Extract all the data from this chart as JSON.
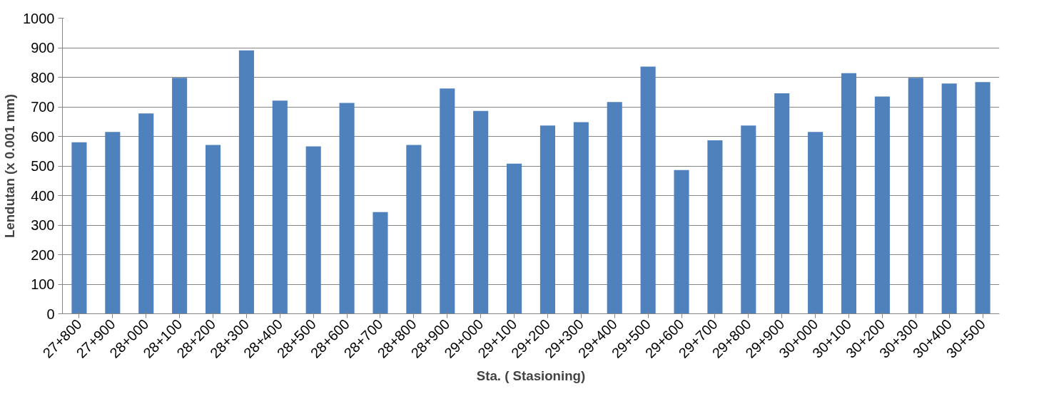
{
  "chart_data": {
    "type": "bar",
    "xlabel": "Sta. ( Stasioning)",
    "ylabel": "Lendutan (x 0.001 mm)",
    "categories": [
      "27+800",
      "27+900",
      "28+000",
      "28+100",
      "28+200",
      "28+300",
      "28+400",
      "28+500",
      "28+600",
      "28+700",
      "28+800",
      "28+900",
      "29+000",
      "29+100",
      "29+200",
      "29+300",
      "29+400",
      "29+500",
      "29+600",
      "29+700",
      "29+800",
      "29+900",
      "30+000",
      "30+100",
      "30+200",
      "30+300",
      "30+400",
      "30+500"
    ],
    "values": [
      580,
      615,
      678,
      798,
      571,
      891,
      721,
      566,
      713,
      344,
      571,
      762,
      686,
      508,
      637,
      648,
      716,
      836,
      486,
      587,
      637,
      746,
      615,
      814,
      735,
      798,
      779,
      784
    ],
    "color": "#4f81bd",
    "ylim": [
      0,
      1000
    ],
    "yticks": [
      0,
      100,
      200,
      300,
      400,
      500,
      600,
      700,
      800,
      900,
      1000
    ],
    "grid": "y"
  }
}
